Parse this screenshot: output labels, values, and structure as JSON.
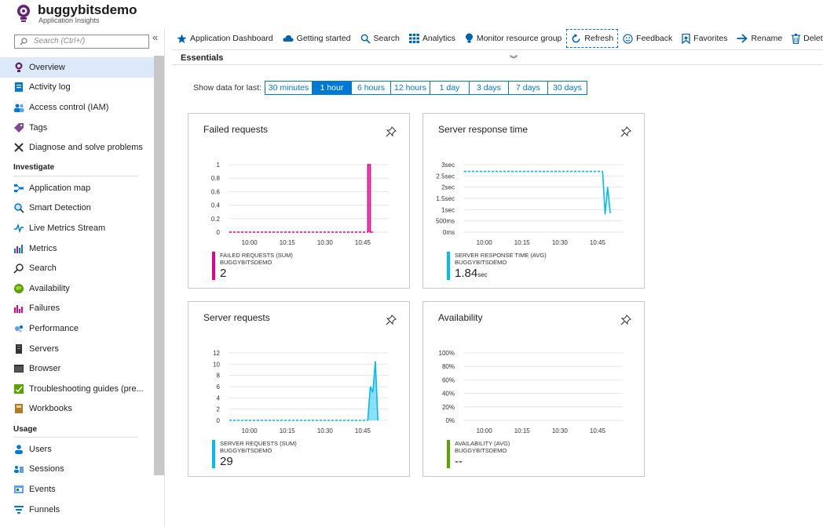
{
  "app": {
    "title": "buggybitsdemo",
    "subtitle": "Application Insights"
  },
  "sidebar": {
    "search_placeholder": "Search (Ctrl+/)",
    "collapse_glyph": "«",
    "items": [
      {
        "label": "Overview",
        "icon": "overview-bulb-icon",
        "active": true
      },
      {
        "label": "Activity log",
        "icon": "activity-log-icon"
      },
      {
        "label": "Access control (IAM)",
        "icon": "access-control-icon"
      },
      {
        "label": "Tags",
        "icon": "tag-icon"
      },
      {
        "label": "Diagnose and solve problems",
        "icon": "wrench-icon"
      }
    ],
    "sections": [
      {
        "title": "Investigate",
        "items": [
          {
            "label": "Application map",
            "icon": "application-map-icon"
          },
          {
            "label": "Smart Detection",
            "icon": "smart-detection-icon"
          },
          {
            "label": "Live Metrics Stream",
            "icon": "live-metrics-icon"
          },
          {
            "label": "Metrics",
            "icon": "metrics-icon"
          },
          {
            "label": "Search",
            "icon": "search-icon"
          },
          {
            "label": "Availability",
            "icon": "availability-icon"
          },
          {
            "label": "Failures",
            "icon": "failures-icon"
          },
          {
            "label": "Performance",
            "icon": "performance-icon"
          },
          {
            "label": "Servers",
            "icon": "servers-icon"
          },
          {
            "label": "Browser",
            "icon": "browser-icon"
          },
          {
            "label": "Troubleshooting guides (pre...",
            "icon": "troubleshooting-icon"
          },
          {
            "label": "Workbooks",
            "icon": "workbooks-icon"
          }
        ]
      },
      {
        "title": "Usage",
        "items": [
          {
            "label": "Users",
            "icon": "users-icon"
          },
          {
            "label": "Sessions",
            "icon": "sessions-icon"
          },
          {
            "label": "Events",
            "icon": "events-icon"
          },
          {
            "label": "Funnels",
            "icon": "funnels-icon"
          }
        ]
      }
    ]
  },
  "toolbar": {
    "items": [
      {
        "label": "Application Dashboard",
        "icon": "star-icon"
      },
      {
        "label": "Getting started",
        "icon": "cloud-icon"
      },
      {
        "label": "Search",
        "icon": "search-icon"
      },
      {
        "label": "Analytics",
        "icon": "analytics-grid-icon"
      },
      {
        "label": "Monitor resource group",
        "icon": "bulb-icon"
      },
      {
        "label": "Refresh",
        "icon": "refresh-icon",
        "focused": true
      },
      {
        "label": "Feedback",
        "icon": "smiley-icon"
      },
      {
        "label": "Favorites",
        "icon": "bookmark-icon"
      },
      {
        "label": "Rename",
        "icon": "arrow-right-icon"
      },
      {
        "label": "Delete",
        "icon": "trash-icon"
      }
    ]
  },
  "essentials": {
    "label": "Essentials",
    "chevron": "︾"
  },
  "time_range": {
    "label": "Show data for last:",
    "options": [
      "30 minutes",
      "1 hour",
      "6 hours",
      "12 hours",
      "1 day",
      "3 days",
      "7 days",
      "30 days"
    ],
    "selected": "1 hour"
  },
  "colors": {
    "accent": "#0078d4",
    "failed": "#e3008c",
    "response": "#00bcf2",
    "requests": "#00bcf2",
    "availability": "#57a300"
  },
  "chart_data": [
    {
      "type": "line",
      "title": "Failed requests",
      "x_ticks": [
        "10:00",
        "10:15",
        "10:30",
        "10:45"
      ],
      "y_ticks": [
        "1",
        "0.8",
        "0.6",
        "0.4",
        "0.2",
        "0"
      ],
      "ylim": [
        0,
        1
      ],
      "xlim": [
        "09:52",
        "10:55"
      ],
      "series": [
        {
          "name": "FAILED REQUESTS (SUM)",
          "x": [
            "09:52",
            "10:47",
            "10:47",
            "10:48",
            "10:48",
            "10:49"
          ],
          "values": [
            0,
            0,
            1,
            1,
            0,
            0
          ]
        }
      ],
      "legend": {
        "name": "FAILED REQUESTS (SUM)",
        "resource": "BUGGYBITSDEMO",
        "value": "2",
        "unit": ""
      }
    },
    {
      "type": "line",
      "title": "Server response time",
      "x_ticks": [
        "10:00",
        "10:15",
        "10:30",
        "10:45"
      ],
      "y_ticks": [
        "3sec",
        "2.5sec",
        "2sec",
        "1.5sec",
        "1sec",
        "500ms",
        "0ms"
      ],
      "ylim": [
        0,
        3
      ],
      "xlim": [
        "09:52",
        "10:55"
      ],
      "series": [
        {
          "name": "SERVER RESPONSE TIME (AVG)",
          "x": [
            "09:52",
            "10:47",
            "10:48",
            "10:49",
            "10:50"
          ],
          "values": [
            2.7,
            2.7,
            0.8,
            2.0,
            0.85
          ]
        }
      ],
      "legend": {
        "name": "SERVER RESPONSE TIME (AVG)",
        "resource": "BUGGYBITSDEMO",
        "value": "1.84",
        "unit": "sec"
      }
    },
    {
      "type": "area",
      "title": "Server requests",
      "x_ticks": [
        "10:00",
        "10:15",
        "10:30",
        "10:45"
      ],
      "y_ticks": [
        "12",
        "10",
        "8",
        "6",
        "4",
        "2",
        "0"
      ],
      "ylim": [
        0,
        12
      ],
      "xlim": [
        "09:52",
        "10:55"
      ],
      "series": [
        {
          "name": "SERVER REQUESTS (SUM)",
          "x": [
            "09:52",
            "10:47",
            "10:48",
            "10:49",
            "10:50",
            "10:51"
          ],
          "values": [
            0,
            0,
            6,
            5,
            10.5,
            0
          ]
        }
      ],
      "legend": {
        "name": "SERVER REQUESTS (SUM)",
        "resource": "BUGGYBITSDEMO",
        "value": "29",
        "unit": ""
      }
    },
    {
      "type": "line",
      "title": "Availability",
      "x_ticks": [
        "10:00",
        "10:15",
        "10:30",
        "10:45"
      ],
      "y_ticks": [
        "100%",
        "80%",
        "60%",
        "40%",
        "20%",
        "0%"
      ],
      "ylim": [
        0,
        100
      ],
      "xlim": [
        "09:52",
        "10:55"
      ],
      "series": [],
      "legend": {
        "name": "AVAILABILITY (AVG)",
        "resource": "BUGGYBITSDEMO",
        "value": "--",
        "unit": ""
      }
    }
  ]
}
